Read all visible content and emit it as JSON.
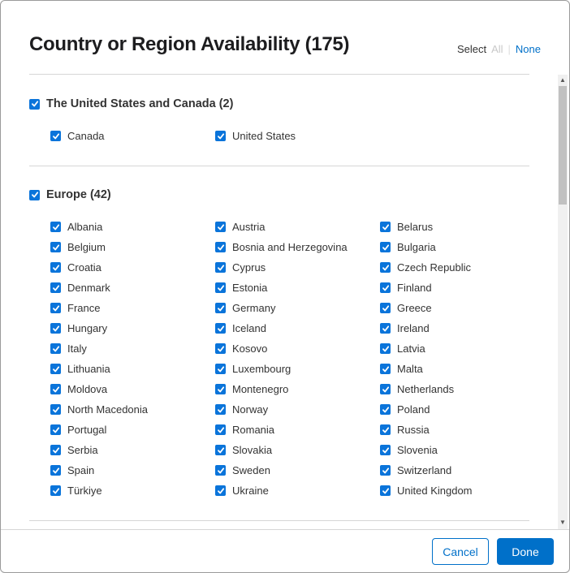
{
  "header": {
    "title": "Country or Region Availability (175)",
    "select_label": "Select",
    "all_label": "All",
    "separator": "|",
    "none_label": "None"
  },
  "sections": [
    {
      "title": "The United States and Canada (2)",
      "checked": true,
      "items": [
        "Canada",
        "United States"
      ]
    },
    {
      "title": "Europe (42)",
      "checked": true,
      "items": [
        "Albania",
        "Austria",
        "Belarus",
        "Belgium",
        "Bosnia and Herzegovina",
        "Bulgaria",
        "Croatia",
        "Cyprus",
        "Czech Republic",
        "Denmark",
        "Estonia",
        "Finland",
        "France",
        "Germany",
        "Greece",
        "Hungary",
        "Iceland",
        "Ireland",
        "Italy",
        "Kosovo",
        "Latvia",
        "Lithuania",
        "Luxembourg",
        "Malta",
        "Moldova",
        "Montenegro",
        "Netherlands",
        "North Macedonia",
        "Norway",
        "Poland",
        "Portugal",
        "Romania",
        "Russia",
        "Serbia",
        "Slovakia",
        "Slovenia",
        "Spain",
        "Sweden",
        "Switzerland",
        "Türkiye",
        "Ukraine",
        "United Kingdom"
      ]
    }
  ],
  "footer": {
    "cancel_label": "Cancel",
    "done_label": "Done"
  },
  "colors": {
    "accent": "#0070c9",
    "checkbox": "#0a74da"
  }
}
